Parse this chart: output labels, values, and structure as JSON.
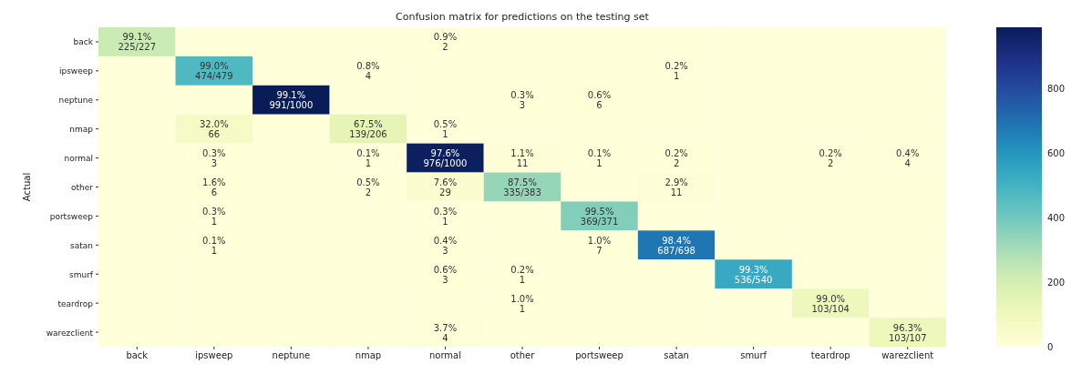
{
  "chart_data": {
    "type": "heatmap",
    "title": "Confusion matrix for predictions on the testing set",
    "ylabel": "Actual",
    "categories": [
      "back",
      "ipsweep",
      "neptune",
      "nmap",
      "normal",
      "other",
      "portsweep",
      "satan",
      "smurf",
      "teardrop",
      "warezclient"
    ],
    "y_categories": [
      "back",
      "ipsweep",
      "neptune",
      "nmap",
      "normal",
      "other",
      "portsweep",
      "satan",
      "smurf",
      "teardrop",
      "warezclient"
    ],
    "cells": [
      [
        225,
        0,
        0,
        0,
        2,
        0,
        0,
        0,
        0,
        0,
        0
      ],
      [
        0,
        474,
        0,
        4,
        0,
        0,
        0,
        1,
        0,
        0,
        0
      ],
      [
        0,
        0,
        991,
        0,
        0,
        3,
        6,
        0,
        0,
        0,
        0
      ],
      [
        0,
        66,
        0,
        139,
        1,
        0,
        0,
        0,
        0,
        0,
        0
      ],
      [
        0,
        3,
        0,
        1,
        976,
        11,
        1,
        2,
        0,
        2,
        4
      ],
      [
        0,
        6,
        0,
        2,
        29,
        335,
        0,
        11,
        0,
        0,
        0
      ],
      [
        0,
        1,
        0,
        0,
        1,
        0,
        369,
        0,
        0,
        0,
        0
      ],
      [
        0,
        1,
        0,
        0,
        3,
        0,
        7,
        687,
        0,
        0,
        0
      ],
      [
        0,
        0,
        0,
        0,
        3,
        1,
        0,
        0,
        536,
        0,
        0
      ],
      [
        0,
        0,
        0,
        0,
        0,
        1,
        0,
        0,
        0,
        103,
        0
      ],
      [
        0,
        0,
        0,
        0,
        4,
        0,
        0,
        0,
        0,
        0,
        103
      ]
    ],
    "cell_labels": [
      [
        "99.1%\n225/227",
        null,
        null,
        null,
        "0.9%\n2",
        null,
        null,
        null,
        null,
        null,
        null
      ],
      [
        null,
        "99.0%\n474/479",
        null,
        "0.8%\n4",
        null,
        null,
        null,
        "0.2%\n1",
        null,
        null,
        null
      ],
      [
        null,
        null,
        "99.1%\n991/1000",
        null,
        null,
        "0.3%\n3",
        "0.6%\n6",
        null,
        null,
        null,
        null
      ],
      [
        null,
        "32.0%\n66",
        null,
        "67.5%\n139/206",
        "0.5%\n1",
        null,
        null,
        null,
        null,
        null,
        null
      ],
      [
        null,
        "0.3%\n3",
        null,
        "0.1%\n1",
        "97.6%\n976/1000",
        "1.1%\n11",
        "0.1%\n1",
        "0.2%\n2",
        null,
        "0.2%\n2",
        "0.4%\n4"
      ],
      [
        null,
        "1.6%\n6",
        null,
        "0.5%\n2",
        "7.6%\n29",
        "87.5%\n335/383",
        null,
        "2.9%\n11",
        null,
        null,
        null
      ],
      [
        null,
        "0.3%\n1",
        null,
        null,
        "0.3%\n1",
        null,
        "99.5%\n369/371",
        null,
        null,
        null,
        null
      ],
      [
        null,
        "0.1%\n1",
        null,
        null,
        "0.4%\n3",
        null,
        "1.0%\n7",
        "98.4%\n687/698",
        null,
        null,
        null
      ],
      [
        null,
        null,
        null,
        null,
        "0.6%\n3",
        "0.2%\n1",
        null,
        null,
        "99.3%\n536/540",
        null,
        null
      ],
      [
        null,
        null,
        null,
        null,
        null,
        "1.0%\n1",
        null,
        null,
        null,
        "99.0%\n103/104",
        null
      ],
      [
        null,
        null,
        null,
        null,
        "3.7%\n4",
        null,
        null,
        null,
        null,
        null,
        "96.3%\n103/107"
      ]
    ],
    "clim": [
      0,
      991
    ],
    "cticks": [
      0,
      200,
      400,
      600,
      800
    ]
  }
}
